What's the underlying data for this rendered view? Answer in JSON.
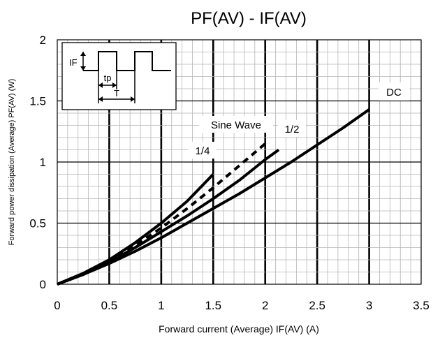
{
  "chart_data": {
    "type": "line",
    "title": "PF(AV) - IF(AV)",
    "xlabel": "Forward current (Average)  IF(AV) (A)",
    "ylabel": "Forward power dissipation (Average)  PF(AV)  (W)",
    "xlim": [
      0,
      3.5
    ],
    "ylim": [
      0,
      2
    ],
    "x_ticks": [
      "0",
      "0.5",
      "1",
      "1.5",
      "2",
      "2.5",
      "3",
      "3.5"
    ],
    "y_ticks": [
      "0",
      "0.5",
      "1",
      "1.5",
      "2"
    ],
    "grid": true,
    "series": [
      {
        "name": "DC",
        "style": "solid",
        "x": [
          0,
          0.25,
          0.5,
          0.75,
          1.0,
          1.25,
          1.5,
          1.75,
          2.0,
          2.25,
          2.5,
          2.75,
          3.0
        ],
        "y": [
          0,
          0.08,
          0.17,
          0.27,
          0.38,
          0.5,
          0.62,
          0.74,
          0.87,
          1.0,
          1.14,
          1.28,
          1.43
        ]
      },
      {
        "name": "1/2",
        "style": "solid",
        "x": [
          0,
          0.25,
          0.5,
          0.75,
          1.0,
          1.25,
          1.5,
          1.75,
          2.0,
          2.13
        ],
        "y": [
          0,
          0.08,
          0.18,
          0.3,
          0.43,
          0.56,
          0.7,
          0.85,
          1.02,
          1.1
        ]
      },
      {
        "name": "Sine Wave",
        "style": "dashed",
        "x": [
          0,
          0.25,
          0.5,
          0.75,
          1.0,
          1.25,
          1.5,
          1.75,
          2.0
        ],
        "y": [
          0,
          0.08,
          0.19,
          0.32,
          0.46,
          0.62,
          0.79,
          0.97,
          1.15
        ]
      },
      {
        "name": "1/4",
        "style": "solid",
        "x": [
          0,
          0.25,
          0.5,
          0.75,
          1.0,
          1.25,
          1.5
        ],
        "y": [
          0,
          0.09,
          0.2,
          0.34,
          0.5,
          0.68,
          0.9
        ]
      }
    ],
    "annotations": [
      "DC",
      "Sine Wave",
      "1/2",
      "1/4"
    ],
    "inset_labels": [
      "IF",
      "tp",
      "T"
    ]
  }
}
